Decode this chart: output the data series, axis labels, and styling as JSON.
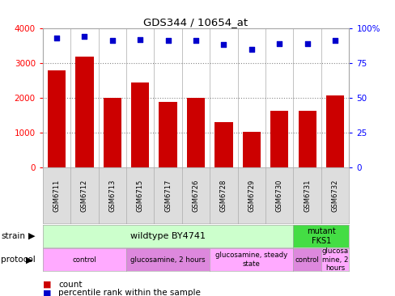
{
  "title": "GDS344 / 10654_at",
  "samples": [
    "GSM6711",
    "GSM6712",
    "GSM6713",
    "GSM6715",
    "GSM6717",
    "GSM6726",
    "GSM6728",
    "GSM6729",
    "GSM6730",
    "GSM6731",
    "GSM6732"
  ],
  "counts": [
    2780,
    3180,
    2000,
    2430,
    1880,
    2000,
    1300,
    1020,
    1620,
    1620,
    2060
  ],
  "percentiles": [
    93,
    94,
    91,
    92,
    91,
    91,
    88,
    85,
    89,
    89,
    91
  ],
  "bar_color": "#cc0000",
  "dot_color": "#0000cc",
  "ylim_left": [
    0,
    4000
  ],
  "ylim_right": [
    0,
    100
  ],
  "yticks_left": [
    0,
    1000,
    2000,
    3000,
    4000
  ],
  "yticks_right": [
    0,
    25,
    50,
    75,
    100
  ],
  "ytick_labels_right": [
    "0",
    "25",
    "50",
    "75",
    "100%"
  ],
  "strain_wildtype": {
    "label": "wildtype BY4741",
    "start": 0,
    "end": 9,
    "color": "#ccffcc"
  },
  "strain_mutant": {
    "label": "mutant\nFKS1",
    "start": 9,
    "end": 11,
    "color": "#44dd44"
  },
  "protocols": [
    {
      "label": "control",
      "start": 0,
      "end": 3,
      "color": "#ffaaff"
    },
    {
      "label": "glucosamine, 2 hours",
      "start": 3,
      "end": 6,
      "color": "#dd88dd"
    },
    {
      "label": "glucosamine, steady\nstate",
      "start": 6,
      "end": 9,
      "color": "#ffaaff"
    },
    {
      "label": "control",
      "start": 9,
      "end": 10,
      "color": "#dd88dd"
    },
    {
      "label": "glucosa\nmine, 2\nhours",
      "start": 10,
      "end": 11,
      "color": "#ffaaff"
    }
  ],
  "legend_count_color": "#cc0000",
  "legend_dot_color": "#0000cc",
  "bg_color": "#ffffff",
  "grid_color": "#888888"
}
